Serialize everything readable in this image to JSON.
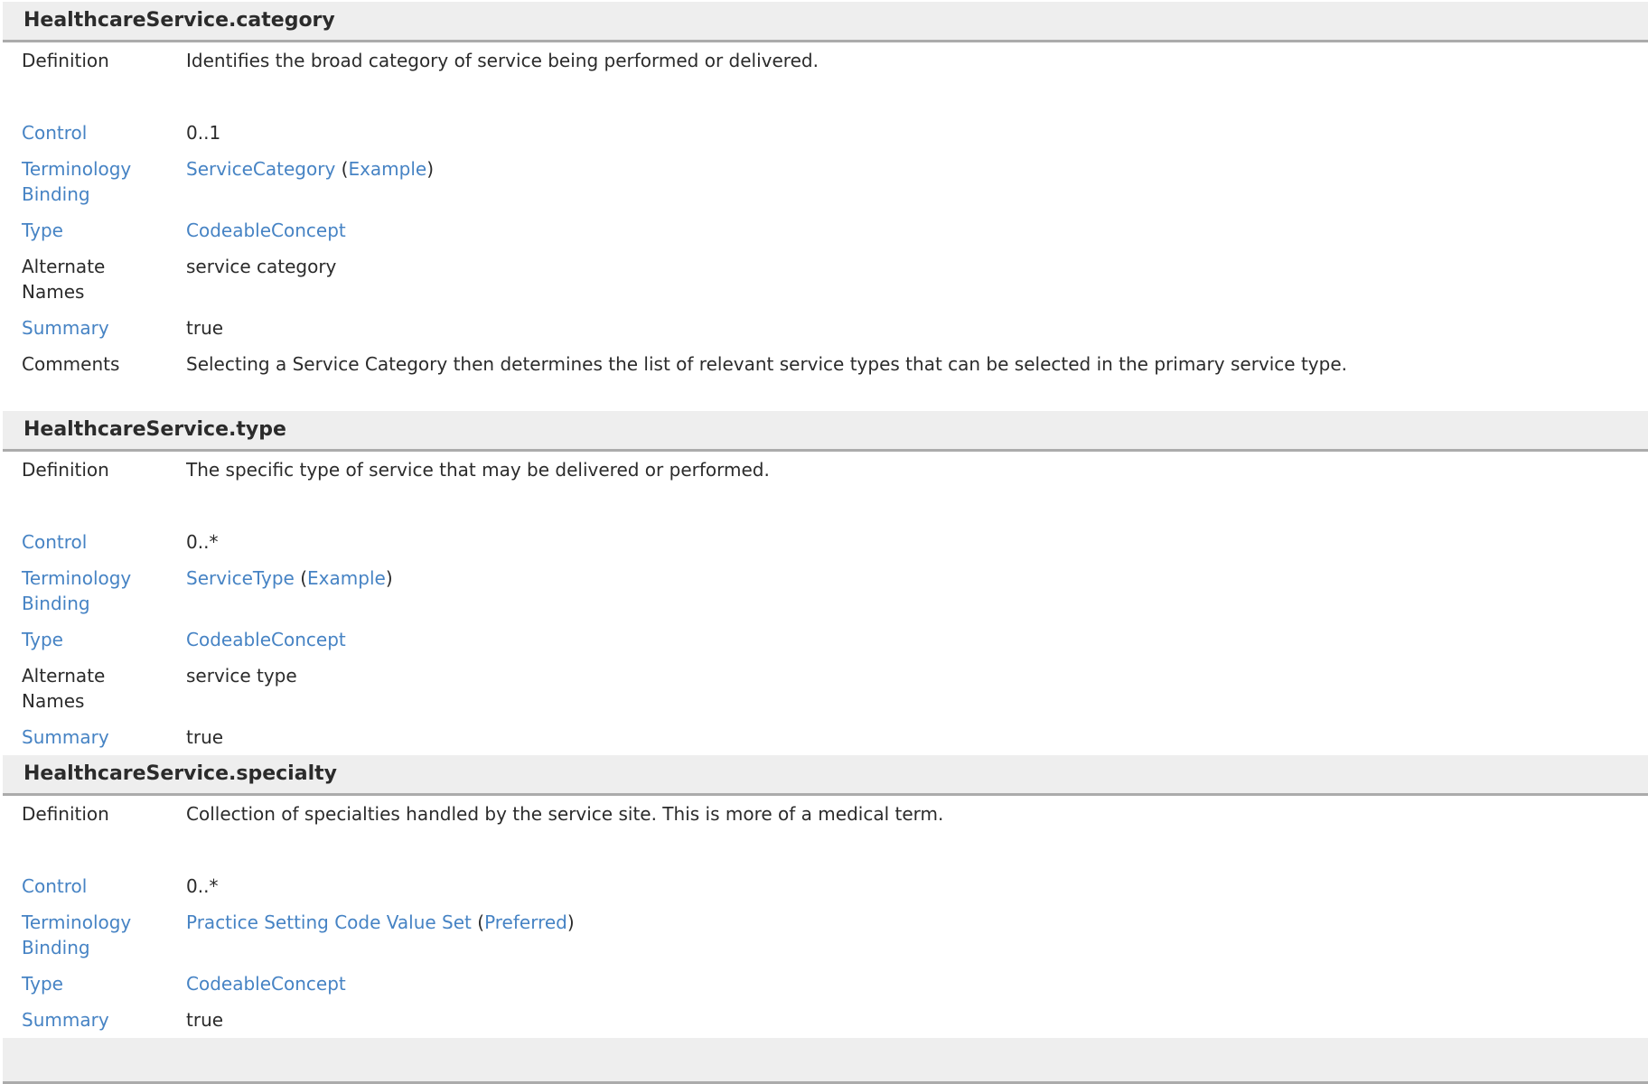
{
  "palette": {
    "link_blue": "#4683c4",
    "text_dark": "#2b2b2b",
    "header_bar_bg": "#eeeeee",
    "header_bar_border": "#ababab"
  },
  "sections": [
    {
      "title": "HealthcareService.category",
      "rows": [
        {
          "label": "Definition",
          "label_is_link": false,
          "kind": "definition",
          "parts": [
            {
              "text": "Identifies the broad category of service being performed or delivered.",
              "link": false
            }
          ]
        },
        {
          "label": "Control",
          "label_is_link": true,
          "kind": "normal",
          "parts": [
            {
              "text": "0..1",
              "link": false
            }
          ]
        },
        {
          "label": "Terminology Binding",
          "label_is_link": true,
          "kind": "normal",
          "parts": [
            {
              "text": "ServiceCategory",
              "link": true
            },
            {
              "text": " (",
              "link": false
            },
            {
              "text": "Example",
              "link": true
            },
            {
              "text": ")",
              "link": false
            }
          ]
        },
        {
          "label": "Type",
          "label_is_link": true,
          "kind": "normal",
          "parts": [
            {
              "text": "CodeableConcept",
              "link": true
            }
          ]
        },
        {
          "label": "Alternate Names",
          "label_is_link": false,
          "kind": "normal",
          "parts": [
            {
              "text": "service category",
              "link": false
            }
          ]
        },
        {
          "label": "Summary",
          "label_is_link": true,
          "kind": "normal",
          "parts": [
            {
              "text": "true",
              "link": false
            }
          ]
        },
        {
          "label": "Comments",
          "label_is_link": false,
          "kind": "comments",
          "parts": [
            {
              "text": "Selecting a Service Category then determines the list of relevant service types that can be selected in the primary service type.",
              "link": false
            }
          ]
        }
      ]
    },
    {
      "title": "HealthcareService.type",
      "rows": [
        {
          "label": "Definition",
          "label_is_link": false,
          "kind": "definition",
          "parts": [
            {
              "text": "The specific type of service that may be delivered or performed.",
              "link": false
            }
          ]
        },
        {
          "label": "Control",
          "label_is_link": true,
          "kind": "normal",
          "parts": [
            {
              "text": "0..*",
              "link": false
            }
          ]
        },
        {
          "label": "Terminology Binding",
          "label_is_link": true,
          "kind": "normal",
          "parts": [
            {
              "text": "ServiceType",
              "link": true
            },
            {
              "text": " (",
              "link": false
            },
            {
              "text": "Example",
              "link": true
            },
            {
              "text": ")",
              "link": false
            }
          ]
        },
        {
          "label": "Type",
          "label_is_link": true,
          "kind": "normal",
          "parts": [
            {
              "text": "CodeableConcept",
              "link": true
            }
          ]
        },
        {
          "label": "Alternate Names",
          "label_is_link": false,
          "kind": "normal",
          "parts": [
            {
              "text": "service type",
              "link": false
            }
          ]
        },
        {
          "label": "Summary",
          "label_is_link": true,
          "kind": "normal",
          "parts": [
            {
              "text": "true",
              "link": false
            }
          ]
        }
      ]
    },
    {
      "title": "HealthcareService.specialty",
      "rows": [
        {
          "label": "Definition",
          "label_is_link": false,
          "kind": "definition",
          "parts": [
            {
              "text": "Collection of specialties handled by the service site. This is more of a medical term.",
              "link": false
            }
          ]
        },
        {
          "label": "Control",
          "label_is_link": true,
          "kind": "normal",
          "parts": [
            {
              "text": "0..*",
              "link": false
            }
          ]
        },
        {
          "label": "Terminology Binding",
          "label_is_link": true,
          "kind": "normal",
          "parts": [
            {
              "text": "Practice Setting Code Value Set",
              "link": true
            },
            {
              "text": " (",
              "link": false
            },
            {
              "text": "Preferred",
              "link": true
            },
            {
              "text": ")",
              "link": false
            }
          ]
        },
        {
          "label": "Type",
          "label_is_link": true,
          "kind": "normal",
          "parts": [
            {
              "text": "CodeableConcept",
              "link": true
            }
          ]
        },
        {
          "label": "Summary",
          "label_is_link": true,
          "kind": "normal",
          "parts": [
            {
              "text": "true",
              "link": false
            }
          ]
        }
      ]
    }
  ],
  "partial_next_section_bar": true
}
